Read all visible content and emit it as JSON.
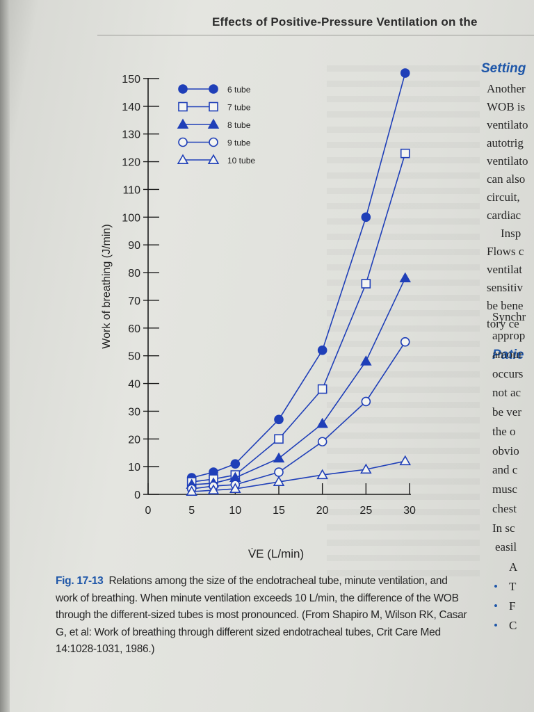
{
  "page": {
    "header": "Effects of Positive-Pressure Ventilation on the",
    "right_column": {
      "heading1": "Setting",
      "lines1": [
        "Another",
        "WOB is",
        "ventilato",
        "autotrig",
        "ventilato",
        "can also",
        "circuit,",
        "cardiac",
        "Insp",
        "Flows c",
        "ventilat",
        "sensitiv",
        "be bene",
        "tory ce"
      ],
      "heading2": "Patie",
      "lines2": [
        "Synchr",
        "approp",
        "amour",
        "occurs",
        "not ac",
        "be ver",
        "the o",
        "obvio",
        "and c",
        "musc",
        "chest",
        "In sc",
        "easil",
        "A",
        "T",
        "F",
        "C"
      ]
    },
    "caption": {
      "label": "Fig. 17-13",
      "text": "Relations among the size of the endotracheal tube, minute ventilation, and work of breathing. When minute ventilation exceeds 10 L/min, the difference of the WOB through the different-sized tubes is most pronounced. (From Shapiro M, Wilson RK, Casar G, et al: Work of breathing through different sized endotracheal tubes, Crit Care Med 14:1028-1031, 1986.)"
    }
  },
  "colors": {
    "series": "#1f3fb8",
    "axis": "#1a1a1a",
    "text": "#262626",
    "accent": "#1e56a8"
  },
  "chart_data": {
    "type": "line",
    "title": "",
    "xlabel": "V̇E (L/min)",
    "ylabel": "Work of breathing (J/min)",
    "xlim": [
      0,
      30
    ],
    "ylim": [
      0,
      150
    ],
    "x_ticks": [
      0,
      5,
      10,
      15,
      20,
      25,
      30
    ],
    "y_ticks": [
      0,
      10,
      20,
      30,
      40,
      50,
      60,
      70,
      80,
      90,
      100,
      110,
      120,
      130,
      140,
      150
    ],
    "x_tick_labels": [
      "0",
      "5",
      "10",
      "15",
      "20",
      "25",
      "30"
    ],
    "y_tick_labels": [
      "0",
      "10",
      "20",
      "30",
      "40",
      "50",
      "60",
      "70",
      "80",
      "90",
      "100",
      "110",
      "120",
      "130",
      "140",
      "150"
    ],
    "grid": false,
    "legend_position": "top-left",
    "x": [
      5,
      7.5,
      10,
      15,
      20,
      25,
      29.5
    ],
    "series": [
      {
        "name": "6 tube",
        "marker": "circle-filled",
        "values": [
          6,
          8,
          11,
          27,
          52,
          100,
          152
        ]
      },
      {
        "name": "7 tube",
        "marker": "square-open",
        "values": [
          4.5,
          5.5,
          7,
          20,
          38,
          76,
          123
        ]
      },
      {
        "name": "8 tube",
        "marker": "triangle-filled",
        "values": [
          3.5,
          4,
          6,
          13,
          25.5,
          48,
          78
        ]
      },
      {
        "name": "9 tube",
        "marker": "circle-open",
        "values": [
          2,
          3,
          3.5,
          8,
          19,
          33.5,
          55
        ]
      },
      {
        "name": "10 tube",
        "marker": "triangle-open",
        "values": [
          1,
          1.5,
          2,
          4.5,
          7,
          9,
          12
        ]
      }
    ]
  }
}
